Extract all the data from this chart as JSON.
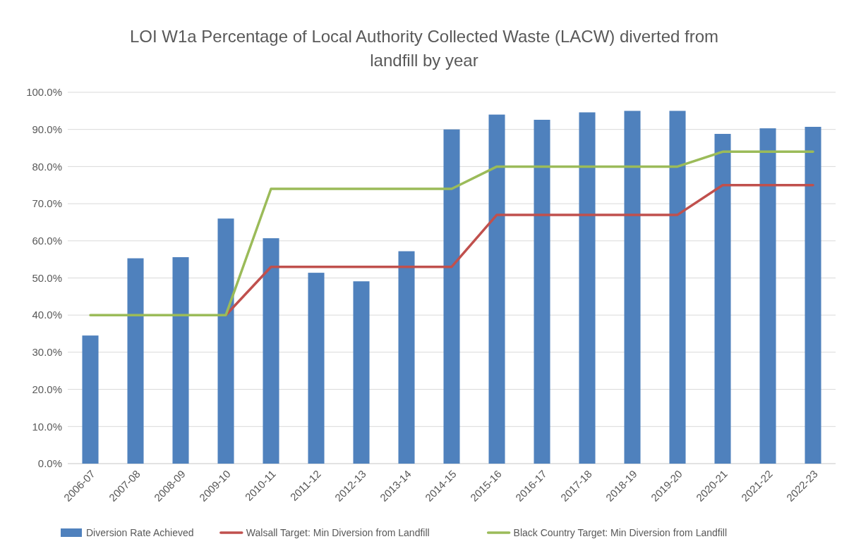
{
  "chart_data": {
    "type": "bar",
    "title": "LOI W1a Percentage of Local Authority Collected Waste (LACW) diverted from landfill by year",
    "categories": [
      "2006-07",
      "2007-08",
      "2008-09",
      "2009-10",
      "2010-11",
      "2011-12",
      "2012-13",
      "2013-14",
      "2014-15",
      "2015-16",
      "2016-17",
      "2017-18",
      "2018-19",
      "2019-20",
      "2020-21",
      "2021-22",
      "2022-23"
    ],
    "series": [
      {
        "name": "Diversion Rate Achieved",
        "color": "#4f81bd",
        "values": [
          34.5,
          55.3,
          55.6,
          66,
          60.7,
          51.4,
          49.1,
          57.2,
          90,
          94,
          92.6,
          94.6,
          95,
          95,
          88.8,
          90.3,
          90.7
        ]
      },
      {
        "name": "Walsall Target: Min Diversion from Landfill",
        "type": "line",
        "color": "#c0504d",
        "values": [
          null,
          null,
          null,
          40,
          53,
          53,
          53,
          53,
          53,
          67,
          67,
          67,
          67,
          67,
          75,
          75,
          75
        ]
      },
      {
        "name": "Black Country Target: Min Diversion from Landfill",
        "type": "line",
        "color": "#9bbb59",
        "values": [
          40,
          40,
          40,
          40,
          74,
          74,
          74,
          74,
          74,
          80,
          80,
          80,
          80,
          80,
          84,
          84,
          84
        ]
      }
    ],
    "ylim": [
      0,
      100
    ],
    "yticks": [
      {
        "value": 0,
        "label": "0.0%"
      },
      {
        "value": 10,
        "label": "10.0%"
      },
      {
        "value": 20,
        "label": "20.0%"
      },
      {
        "value": 30,
        "label": "30.0%"
      },
      {
        "value": 40,
        "label": "40.0%"
      },
      {
        "value": 50,
        "label": "50.0%"
      },
      {
        "value": 60,
        "label": "60.0%"
      },
      {
        "value": 70,
        "label": "70.0%"
      },
      {
        "value": 80,
        "label": "80.0%"
      },
      {
        "value": 90,
        "label": "90.0%"
      },
      {
        "value": 100,
        "label": "100.0%"
      }
    ],
    "grid": "y",
    "legend": "bottom",
    "marker": "none",
    "line_style": "solid"
  }
}
